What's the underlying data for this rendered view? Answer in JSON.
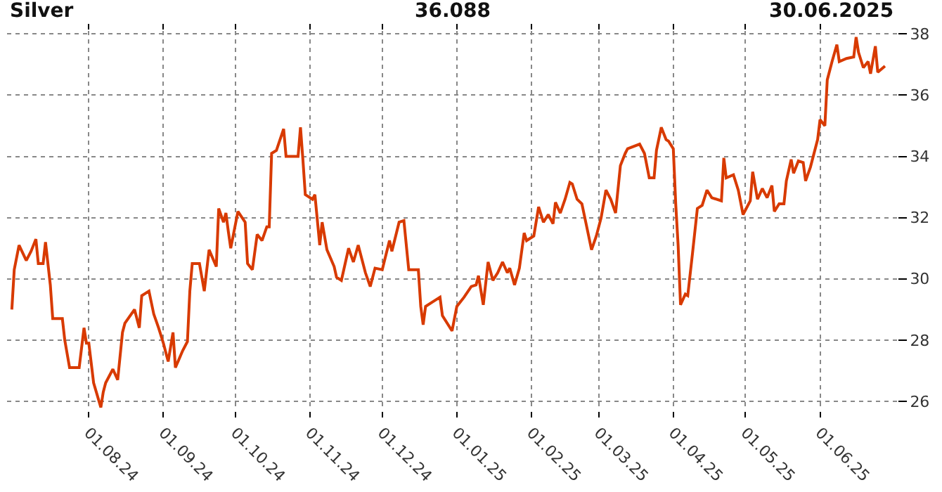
{
  "chart_data": {
    "type": "line",
    "title": "Silver",
    "subtitle": "36.088",
    "annotations": [
      "30.06.2025"
    ],
    "x": [
      "2024-06-30",
      "2024-07-01",
      "2024-07-03",
      "2024-07-06",
      "2024-07-08",
      "2024-07-10",
      "2024-07-11",
      "2024-07-13",
      "2024-07-14",
      "2024-07-16",
      "2024-07-17",
      "2024-07-21",
      "2024-07-22",
      "2024-07-24",
      "2024-07-28",
      "2024-07-30",
      "2024-07-31",
      "2024-08-01",
      "2024-08-03",
      "2024-08-06",
      "2024-08-07",
      "2024-08-08",
      "2024-08-11",
      "2024-08-13",
      "2024-08-15",
      "2024-08-16",
      "2024-08-20",
      "2024-08-22",
      "2024-08-23",
      "2024-08-26",
      "2024-08-28",
      "2024-08-30",
      "2024-09-01",
      "2024-09-03",
      "2024-09-05",
      "2024-09-06",
      "2024-09-09",
      "2024-09-11",
      "2024-09-12",
      "2024-09-13",
      "2024-09-16",
      "2024-09-18",
      "2024-09-20",
      "2024-09-23",
      "2024-09-24",
      "2024-09-26",
      "2024-09-27",
      "2024-09-28",
      "2024-09-29",
      "2024-10-02",
      "2024-10-05",
      "2024-10-06",
      "2024-10-08",
      "2024-10-10",
      "2024-10-12",
      "2024-10-14",
      "2024-10-15",
      "2024-10-16",
      "2024-10-18",
      "2024-10-21",
      "2024-10-22",
      "2024-10-27",
      "2024-10-28",
      "2024-10-29",
      "2024-10-30",
      "2024-11-02",
      "2024-11-03",
      "2024-11-05",
      "2024-11-06",
      "2024-11-08",
      "2024-11-11",
      "2024-11-12",
      "2024-11-14",
      "2024-11-17",
      "2024-11-19",
      "2024-11-21",
      "2024-11-24",
      "2024-11-26",
      "2024-11-28",
      "2024-12-01",
      "2024-12-04",
      "2024-12-05",
      "2024-12-08",
      "2024-12-10",
      "2024-12-12",
      "2024-12-16",
      "2024-12-17",
      "2024-12-18",
      "2024-12-19",
      "2024-12-22",
      "2024-12-25",
      "2024-12-26",
      "2024-12-30",
      "2025-01-01",
      "2025-01-04",
      "2025-01-07",
      "2025-01-09",
      "2025-01-10",
      "2025-01-12",
      "2025-01-14",
      "2025-01-16",
      "2025-01-18",
      "2025-01-20",
      "2025-01-22",
      "2025-01-23",
      "2025-01-25",
      "2025-01-27",
      "2025-01-29",
      "2025-01-30",
      "2025-02-02",
      "2025-02-04",
      "2025-02-06",
      "2025-02-08",
      "2025-02-10",
      "2025-02-11",
      "2025-02-13",
      "2025-02-15",
      "2025-02-17",
      "2025-02-18",
      "2025-02-20",
      "2025-02-22",
      "2025-02-24",
      "2025-02-26",
      "2025-02-28",
      "2025-03-02",
      "2025-03-04",
      "2025-03-06",
      "2025-03-08",
      "2025-03-10",
      "2025-03-12",
      "2025-03-13",
      "2025-03-18",
      "2025-03-20",
      "2025-03-22",
      "2025-03-24",
      "2025-03-25",
      "2025-03-27",
      "2025-03-29",
      "2025-03-30",
      "2025-04-01",
      "2025-04-02",
      "2025-04-03",
      "2025-04-04",
      "2025-04-06",
      "2025-04-07",
      "2025-04-09",
      "2025-04-11",
      "2025-04-13",
      "2025-04-15",
      "2025-04-17",
      "2025-04-21",
      "2025-04-22",
      "2025-04-23",
      "2025-04-26",
      "2025-04-28",
      "2025-04-30",
      "2025-05-03",
      "2025-05-04",
      "2025-05-06",
      "2025-05-08",
      "2025-05-10",
      "2025-05-12",
      "2025-05-13",
      "2025-05-15",
      "2025-05-17",
      "2025-05-18",
      "2025-05-20",
      "2025-05-21",
      "2025-05-23",
      "2025-05-25",
      "2025-05-26",
      "2025-05-28",
      "2025-05-31",
      "2025-06-01",
      "2025-06-03",
      "2025-06-04",
      "2025-06-06",
      "2025-06-08",
      "2025-06-09",
      "2025-06-12",
      "2025-06-15",
      "2025-06-16",
      "2025-06-17",
      "2025-06-19",
      "2025-06-21",
      "2025-06-22",
      "2025-06-24",
      "2025-06-25",
      "2025-06-28"
    ],
    "series": [
      {
        "color": "#d83a00",
        "values": [
          29.0,
          30.3,
          31.1,
          30.6,
          30.9,
          31.3,
          30.5,
          30.5,
          31.2,
          29.8,
          28.7,
          28.7,
          28.0,
          27.1,
          27.1,
          28.4,
          27.9,
          27.9,
          26.6,
          25.8,
          26.3,
          26.6,
          27.05,
          26.7,
          28.25,
          28.55,
          29.0,
          28.4,
          29.45,
          29.6,
          28.85,
          28.4,
          27.9,
          27.3,
          28.25,
          27.1,
          27.65,
          27.95,
          29.6,
          30.5,
          30.5,
          29.6,
          30.95,
          30.4,
          32.3,
          31.85,
          32.15,
          31.55,
          31.0,
          32.2,
          31.85,
          30.5,
          30.3,
          31.45,
          31.25,
          31.7,
          31.7,
          34.1,
          34.2,
          34.9,
          34.0,
          34.0,
          34.95,
          33.9,
          32.75,
          32.6,
          32.75,
          31.1,
          31.85,
          30.95,
          30.4,
          30.05,
          29.95,
          31.0,
          30.55,
          31.1,
          30.2,
          29.75,
          30.35,
          30.3,
          31.25,
          30.9,
          31.85,
          31.9,
          30.3,
          30.3,
          29.1,
          28.5,
          29.1,
          29.25,
          29.4,
          28.8,
          28.3,
          29.1,
          29.4,
          29.75,
          29.8,
          30.1,
          29.15,
          30.55,
          29.95,
          30.2,
          30.55,
          30.2,
          30.35,
          29.8,
          30.35,
          31.5,
          31.25,
          31.4,
          32.35,
          31.85,
          32.1,
          31.8,
          32.5,
          32.15,
          32.6,
          33.15,
          33.1,
          32.6,
          32.45,
          31.7,
          30.95,
          31.4,
          32.0,
          32.9,
          32.6,
          32.15,
          33.7,
          34.1,
          34.25,
          34.4,
          34.1,
          33.3,
          33.3,
          34.2,
          34.95,
          34.55,
          34.5,
          34.25,
          32.45,
          31.1,
          29.15,
          29.5,
          29.45,
          30.85,
          32.3,
          32.4,
          32.9,
          32.65,
          32.55,
          33.95,
          33.3,
          33.4,
          32.9,
          32.1,
          32.55,
          33.5,
          32.6,
          32.95,
          32.65,
          33.05,
          32.2,
          32.45,
          32.45,
          33.2,
          33.9,
          33.45,
          33.85,
          33.8,
          33.2,
          33.65,
          34.55,
          35.2,
          35.0,
          36.5,
          37.1,
          37.65,
          37.1,
          37.2,
          37.25,
          37.9,
          37.4,
          36.9,
          37.1,
          36.7,
          37.6,
          36.75,
          36.95
        ]
      }
    ],
    "xlim": [
      "2024-06-28",
      "2025-07-03"
    ],
    "xticks": [
      {
        "value": "2024-08-01",
        "label": "01.08.24"
      },
      {
        "value": "2024-09-01",
        "label": "01.09.24"
      },
      {
        "value": "2024-10-01",
        "label": "01.10.24"
      },
      {
        "value": "2024-11-01",
        "label": "01.11.24"
      },
      {
        "value": "2024-12-01",
        "label": "01.12.24"
      },
      {
        "value": "2025-01-01",
        "label": "01.01.25"
      },
      {
        "value": "2025-02-01",
        "label": "01.02.25"
      },
      {
        "value": "2025-03-01",
        "label": "01.03.25"
      },
      {
        "value": "2025-04-01",
        "label": "01.04.25"
      },
      {
        "value": "2025-05-01",
        "label": "01.05.25"
      },
      {
        "value": "2025-06-01",
        "label": "01.06.25"
      }
    ],
    "ylim": [
      25.7,
      38.1
    ],
    "yticks": [
      26,
      28,
      30,
      32,
      34,
      36,
      38
    ],
    "grid": true,
    "legend": false,
    "line_style": "solid",
    "marker": "none"
  }
}
